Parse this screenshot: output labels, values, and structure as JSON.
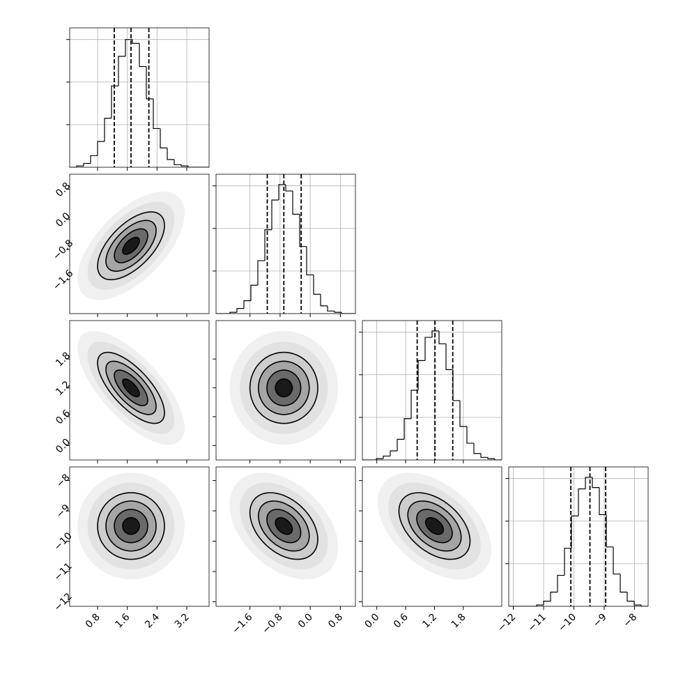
{
  "chart_data": {
    "type": "corner",
    "grid": true,
    "color": "#000000",
    "levels": [
      0.5,
      1,
      1.5,
      2
    ],
    "parameters": [
      {
        "xlim": [
          0.05,
          3.8
        ],
        "xticks": [
          0.8,
          1.6,
          2.4,
          3.2
        ],
        "mean": 1.7,
        "sd": 0.45,
        "bins": [
          0.05,
          0.2375,
          0.425,
          0.6125,
          0.8,
          0.9875,
          1.175,
          1.3625,
          1.55,
          1.7375,
          1.925,
          2.1125,
          2.3,
          2.4875,
          2.675,
          2.8625,
          3.05,
          3.2375,
          3.425,
          3.6125,
          3.8
        ],
        "counts": [
          0,
          1,
          3,
          9,
          20,
          38,
          63,
          86,
          99,
          96,
          78,
          53,
          30,
          15,
          6,
          2,
          1,
          0,
          0,
          0
        ],
        "ylim": [
          0,
          108
        ],
        "yticks": [
          33,
          66,
          99
        ],
        "quantiles": [
          1.25,
          1.7,
          2.18
        ]
      },
      {
        "xlim": [
          -2.5,
          1.2
        ],
        "xticks": [
          {
            "value": -1.6,
            "label": "−1.6"
          },
          {
            "value": -0.8,
            "label": "−0.8"
          },
          {
            "value": 0,
            "label": "0.0"
          },
          0.8
        ],
        "mean": -0.7,
        "sd": 0.45,
        "bins": [
          -2.5,
          -2.315,
          -2.13,
          -1.945,
          -1.76,
          -1.575,
          -1.39,
          -1.205,
          -1.02,
          -0.835,
          -0.65,
          -0.465,
          -0.28,
          -0.095,
          0.09,
          0.275,
          0.46,
          0.645,
          0.83,
          1.015,
          1.2
        ],
        "counts": [
          0,
          0,
          1,
          4,
          10,
          22,
          41,
          65,
          88,
          100,
          95,
          77,
          52,
          30,
          15,
          6,
          2,
          1,
          0,
          0
        ],
        "ylim": [
          0,
          108
        ],
        "yticks": [
          33,
          66,
          99
        ],
        "quantiles": [
          -1.14,
          -0.7,
          -0.24
        ]
      },
      {
        "xlim": [
          -0.3,
          2.6
        ],
        "xticks": [
          {
            "value": 0,
            "label": "0.0"
          },
          0.6,
          1.2,
          1.8
        ],
        "mean": 1.2,
        "sd": 0.37,
        "bins": [
          -0.3,
          -0.155,
          -0.01,
          0.135,
          0.28,
          0.425,
          0.57,
          0.715,
          0.86,
          1.005,
          1.15,
          1.295,
          1.44,
          1.585,
          1.73,
          1.875,
          2.02,
          2.165,
          2.31,
          2.455,
          2.6
        ],
        "counts": [
          0,
          0,
          1,
          3,
          7,
          16,
          32,
          54,
          77,
          95,
          100,
          90,
          70,
          46,
          26,
          13,
          5,
          2,
          1,
          0
        ],
        "ylim": [
          0,
          108
        ],
        "yticks": [
          33,
          66,
          99
        ],
        "quantiles": [
          0.84,
          1.21,
          1.58
        ]
      },
      {
        "xlim": [
          -12.15,
          -7.55
        ],
        "xticks": [
          {
            "value": -12,
            "label": "−12"
          },
          {
            "value": -11,
            "label": "−11"
          },
          {
            "value": -10,
            "label": "−10"
          },
          {
            "value": -9,
            "label": "−9"
          },
          {
            "value": -8,
            "label": "−8"
          }
        ],
        "mean": -9.5,
        "sd": 0.55,
        "bins": [
          -12.15,
          -11.92,
          -11.69,
          -11.46,
          -11.23,
          -11.0,
          -10.77,
          -10.54,
          -10.31,
          -10.08,
          -9.85,
          -9.62,
          -9.39,
          -9.16,
          -8.93,
          -8.7,
          -8.47,
          -8.24,
          -8.01,
          -7.78,
          -7.55
        ],
        "counts": [
          0,
          0,
          0,
          0,
          1,
          4,
          11,
          24,
          45,
          70,
          91,
          100,
          92,
          71,
          46,
          25,
          11,
          4,
          1,
          0
        ],
        "ylim": [
          0,
          108
        ],
        "yticks": [
          33,
          66,
          99
        ],
        "quantiles": [
          -10.1,
          -9.47,
          -8.95
        ]
      }
    ],
    "correlations": [
      0.6,
      -0.7,
      0.0,
      0.0,
      -0.4,
      -0.45
    ]
  }
}
